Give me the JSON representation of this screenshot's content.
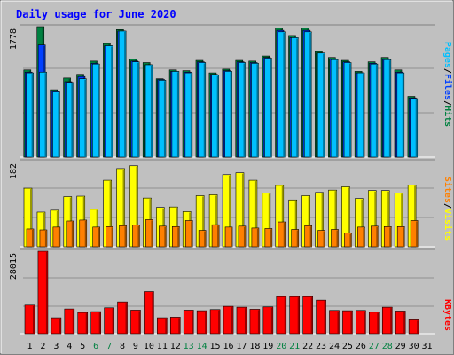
{
  "title": "Daily usage for June 2020",
  "colors": {
    "background": "#c0c0c0",
    "hits": "#008040",
    "files": "#0040ff",
    "pages": "#00c0ff",
    "visits": "#ffff00",
    "sites": "#ff8000",
    "kbytes": "#ff0000",
    "title_text": "#0000ff",
    "weekend_label": "#008040",
    "weekday_label": "#000000"
  },
  "chart_data": [
    {
      "type": "bar",
      "title": "Daily usage for June 2020",
      "categories": [
        "1",
        "2",
        "3",
        "4",
        "5",
        "6",
        "7",
        "8",
        "9",
        "10",
        "11",
        "12",
        "13",
        "14",
        "15",
        "16",
        "17",
        "18",
        "19",
        "20",
        "21",
        "22",
        "23",
        "24",
        "25",
        "26",
        "27",
        "28",
        "29",
        "30",
        "31"
      ],
      "weekend_days": [
        "6",
        "7",
        "13",
        "14",
        "20",
        "21",
        "27",
        "28"
      ],
      "y_max_label": "1778",
      "ylim": [
        0,
        1778
      ],
      "grid": true,
      "axis_label_parts": [
        {
          "text": "Pages",
          "color": "#00c0ff"
        },
        {
          "text": "/",
          "color": "#000000"
        },
        {
          "text": "Files",
          "color": "#0040ff"
        },
        {
          "text": "/",
          "color": "#000000"
        },
        {
          "text": "Hits",
          "color": "#008040"
        }
      ],
      "series": [
        {
          "name": "Hits",
          "color": "#008040",
          "values": [
            1188,
            1778,
            918,
            1078,
            1128,
            1308,
            1548,
            1738,
            1338,
            1288,
            1068,
            1188,
            1178,
            1318,
            1148,
            1198,
            1318,
            1308,
            1378,
            1758,
            1658,
            1758,
            1438,
            1358,
            1318,
            1168,
            1298,
            1358,
            1188,
            828,
            0
          ]
        },
        {
          "name": "Files",
          "color": "#0040ff",
          "values": [
            1158,
            1528,
            898,
            1028,
            1098,
            1278,
            1518,
            1718,
            1308,
            1258,
            1058,
            1168,
            1158,
            1298,
            1128,
            1178,
            1298,
            1288,
            1358,
            1728,
            1628,
            1728,
            1418,
            1338,
            1298,
            1148,
            1278,
            1338,
            1158,
            808,
            0
          ]
        },
        {
          "name": "Pages",
          "color": "#00c0ff",
          "values": [
            1148,
            1158,
            888,
            1018,
            1068,
            1268,
            1518,
            1718,
            1298,
            1258,
            1048,
            1168,
            1148,
            1288,
            1118,
            1168,
            1288,
            1278,
            1348,
            1708,
            1628,
            1708,
            1418,
            1328,
            1288,
            1148,
            1268,
            1328,
            1148,
            798,
            0
          ]
        }
      ]
    },
    {
      "type": "bar",
      "categories": [
        "1",
        "2",
        "3",
        "4",
        "5",
        "6",
        "7",
        "8",
        "9",
        "10",
        "11",
        "12",
        "13",
        "14",
        "15",
        "16",
        "17",
        "18",
        "19",
        "20",
        "21",
        "22",
        "23",
        "24",
        "25",
        "26",
        "27",
        "28",
        "29",
        "30",
        "31"
      ],
      "y_max_label": "182",
      "ylim": [
        0,
        182
      ],
      "grid": true,
      "axis_label_parts": [
        {
          "text": "Sites",
          "color": "#ff8000"
        },
        {
          "text": "/",
          "color": "#000000"
        },
        {
          "text": "Visits",
          "color": "#ffff00"
        }
      ],
      "series": [
        {
          "name": "Visits",
          "color": "#ffff00",
          "values": [
            125,
            74,
            78,
            107,
            108,
            80,
            142,
            167,
            173,
            104,
            84,
            85,
            75,
            109,
            111,
            154,
            158,
            142,
            115,
            131,
            100,
            109,
            116,
            121,
            128,
            103,
            120,
            120,
            115,
            132,
            0
          ]
        },
        {
          "name": "Sites",
          "color": "#ff8000",
          "values": [
            38,
            36,
            42,
            55,
            57,
            42,
            43,
            45,
            46,
            58,
            44,
            43,
            56,
            35,
            47,
            42,
            44,
            40,
            39,
            53,
            37,
            45,
            35,
            37,
            29,
            42,
            44,
            43,
            43,
            56,
            0
          ]
        }
      ]
    },
    {
      "type": "bar",
      "categories": [
        "1",
        "2",
        "3",
        "4",
        "5",
        "6",
        "7",
        "8",
        "9",
        "10",
        "11",
        "12",
        "13",
        "14",
        "15",
        "16",
        "17",
        "18",
        "19",
        "20",
        "21",
        "22",
        "23",
        "24",
        "25",
        "26",
        "27",
        "28",
        "29",
        "30",
        "31"
      ],
      "y_max_label": "28015",
      "ylim": [
        0,
        28015
      ],
      "grid": true,
      "axis_label_parts": [
        {
          "text": "KBytes",
          "color": "#ff0000"
        }
      ],
      "series": [
        {
          "name": "KBytes",
          "color": "#ff0000",
          "values": [
            9700,
            28015,
            5400,
            8400,
            7200,
            7500,
            8800,
            10800,
            8000,
            14300,
            5400,
            5600,
            8000,
            7800,
            8200,
            9300,
            9000,
            8300,
            9100,
            12600,
            12600,
            12600,
            11400,
            7900,
            7800,
            7900,
            7300,
            9000,
            7700,
            4700,
            0
          ]
        }
      ]
    }
  ]
}
